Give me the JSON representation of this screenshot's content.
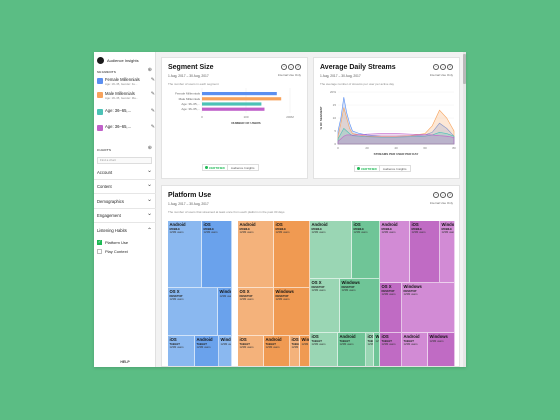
{
  "app": {
    "title": "Audience Insights"
  },
  "sidebar": {
    "segments_label": "SEGMENTS",
    "segments": [
      {
        "name": "Female Millennials",
        "sub": "Age: 18–35, Gender: Fe...",
        "color": "#5b8ff0"
      },
      {
        "name": "Male Millennials",
        "sub": "Age: 18–35, Gender: Ma...",
        "color": "#f7a35c"
      },
      {
        "name": "Age: 36–65,...",
        "sub": "",
        "color": "#4cc2b6"
      },
      {
        "name": "Age: 36–65,...",
        "sub": "",
        "color": "#c061c9"
      }
    ],
    "charts_label": "CHARTS",
    "search_placeholder": "Find a chart",
    "sections": [
      "Account",
      "Content",
      "Demographics",
      "Engagement"
    ],
    "listening_label": "Listening Habits",
    "options": [
      {
        "label": "Platform Use",
        "checked": true
      },
      {
        "label": "Play Context",
        "checked": false
      }
    ],
    "help": "HELP"
  },
  "segment_size": {
    "title": "Segment Size",
    "date": "1 Aug, 2017 – 30 Aug, 2017",
    "note": "Internal Use Only",
    "desc": "The number of users in each segment",
    "chart_data": {
      "type": "bar",
      "orientation": "horizontal",
      "categories": [
        "Female Millennials",
        "Male Millennials",
        "Age: 36–65,...",
        "Age: 36–65,..."
      ],
      "values": [
        170,
        180,
        135,
        142
      ],
      "colors": [
        "#5b8ff0",
        "#f7a35c",
        "#4cc2b6",
        "#c061c9"
      ],
      "xticks": [
        "0",
        "100",
        "200M"
      ],
      "xlim": [
        0,
        200
      ],
      "xlabel": "NUMBER OF USERS"
    },
    "certified": "CERTIFIED",
    "app_name": "Audience Insights"
  },
  "streams": {
    "title": "Average Daily Streams",
    "date": "1 Aug, 2017 – 30 Aug, 2017",
    "note": "Internal Use Only",
    "desc": "The average number of streams per user per active day",
    "chart_data": {
      "type": "area",
      "x": [
        0,
        2,
        4,
        6,
        8,
        10,
        15,
        20,
        30,
        40,
        50,
        60,
        65,
        70,
        75,
        80
      ],
      "series": [
        {
          "values": [
            5,
            10,
            18,
            12,
            8,
            5,
            4,
            3.5,
            3,
            3,
            3.2,
            3.5,
            4.5,
            8,
            6,
            3
          ],
          "color": "#5b8ff0"
        },
        {
          "values": [
            3,
            8,
            14,
            10,
            6,
            4,
            3.5,
            3,
            3,
            3,
            3.2,
            4,
            7,
            13,
            10,
            5
          ],
          "color": "#f7a35c"
        },
        {
          "values": [
            2,
            4,
            6,
            5,
            4,
            3.2,
            3,
            2.8,
            2.6,
            2.6,
            2.8,
            3,
            3.5,
            4.5,
            4,
            3
          ],
          "color": "#4cc2b6"
        },
        {
          "values": [
            1,
            2,
            3,
            3.5,
            3.5,
            3.4,
            3.6,
            3.8,
            4,
            4,
            3.8,
            3.6,
            3.5,
            3.2,
            3,
            2.5
          ],
          "color": "#c061c9"
        }
      ],
      "yticks": [
        "0",
        "5",
        "10",
        "15",
        "20%"
      ],
      "ylim": [
        0,
        20
      ],
      "xticks": [
        "0",
        "20",
        "40",
        "60",
        "80"
      ],
      "xlim": [
        0,
        80
      ],
      "ylabel": "% OF SEGMENT",
      "xlabel": "STREAMS PER USER PER DAY"
    },
    "certified": "CERTIFIED",
    "app_name": "Audience Insights"
  },
  "platform": {
    "title": "Platform Use",
    "date": "1 Aug, 2017 – 30 Aug, 2017",
    "note": "Internal Use Only",
    "desc": "The number of users that streamed at least once from each platform in the past 30 days",
    "colors": [
      "#8ab8f0",
      "#f4b27b",
      "#9ad6b4",
      "#d28bd5"
    ],
    "dark_colors": [
      "#6aa2ec",
      "#f09a52",
      "#6fc597",
      "#c06bc4"
    ],
    "groups": [
      {
        "tiles": [
          {
            "name": "Android",
            "type": "MOBILE",
            "users": "123M users"
          },
          {
            "name": "iOS",
            "type": "MOBILE",
            "users": "123M users"
          },
          {
            "name": "OS X",
            "type": "DESKTOP",
            "users": "123M users"
          },
          {
            "name": "Windows",
            "type": "",
            "users": "123M users"
          },
          {
            "name": "iOS",
            "type": "TABLET",
            "users": "123M users"
          },
          {
            "name": "Android",
            "type": "TABLET",
            "users": "123M users"
          },
          {
            "name": "Windows",
            "type": "",
            "users": "123M users"
          }
        ]
      },
      {
        "tiles": [
          {
            "name": "Android",
            "type": "MOBILE",
            "users": "123M users"
          },
          {
            "name": "iOS",
            "type": "MOBILE",
            "users": "123M users"
          },
          {
            "name": "OS X",
            "type": "DESKTOP",
            "users": "123M users"
          },
          {
            "name": "Windows",
            "type": "DESKTOP",
            "users": "123M users"
          },
          {
            "name": "iOS",
            "type": "TABLET",
            "users": "123M users"
          },
          {
            "name": "Android",
            "type": "TABLET",
            "users": "123M users"
          },
          {
            "name": "iOS",
            "type": "TABLET",
            "users": "123M users"
          },
          {
            "name": "Windows",
            "type": "",
            "users": "123M users"
          }
        ]
      },
      {
        "tiles": [
          {
            "name": "Android",
            "type": "MOBILE",
            "users": "123M users"
          },
          {
            "name": "iOS",
            "type": "MOBILE",
            "users": "123M users"
          },
          {
            "name": "OS X",
            "type": "DESKTOP",
            "users": "123M users"
          },
          {
            "name": "Windows",
            "type": "DESKTOP",
            "users": "123M users"
          },
          {
            "name": "iOS",
            "type": "TABLET",
            "users": "123M users"
          },
          {
            "name": "Android",
            "type": "TABLET",
            "users": "123M users"
          },
          {
            "name": "iOS",
            "type": "TABLET",
            "users": "123M users"
          },
          {
            "name": "Windows",
            "type": "",
            "users": "123M users"
          }
        ]
      },
      {
        "tiles": [
          {
            "name": "Android",
            "type": "MOBILE",
            "users": "123M users"
          },
          {
            "name": "iOS",
            "type": "MOBILE",
            "users": "123M users"
          },
          {
            "name": "Windows",
            "type": "MOBILE",
            "users": "123M users"
          },
          {
            "name": "OS X",
            "type": "DESKTOP",
            "users": "123M users"
          },
          {
            "name": "Windows",
            "type": "DESKTOP",
            "users": "123M users"
          },
          {
            "name": "iOS",
            "type": "TABLET",
            "users": "123M users"
          },
          {
            "name": "Android",
            "type": "TABLET",
            "users": "123M users"
          },
          {
            "name": "Windows",
            "type": "",
            "users": "123M users"
          }
        ]
      }
    ]
  }
}
